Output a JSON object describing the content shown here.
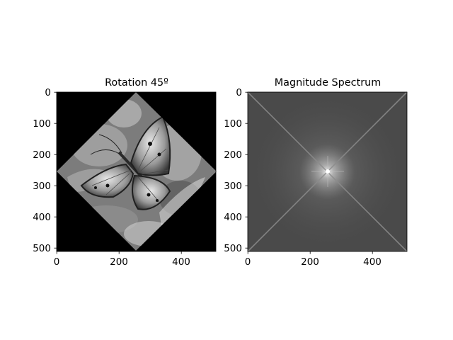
{
  "chart_data": [
    {
      "type": "image",
      "title": "Rotation 45º",
      "xlabel": "",
      "ylabel": "",
      "image_size": [
        512,
        512
      ],
      "xlim": [
        0,
        512
      ],
      "ylim": [
        512,
        0
      ],
      "xticks": [
        0,
        200,
        400
      ],
      "yticks": [
        0,
        100,
        200,
        300,
        400,
        500
      ],
      "colormap": "gray",
      "content": "grayscale photograph of a butterfly rotated 45 degrees, forming a diamond on a black background"
    },
    {
      "type": "image",
      "title": "Magnitude Spectrum",
      "xlabel": "",
      "ylabel": "",
      "image_size": [
        512,
        512
      ],
      "xlim": [
        0,
        512
      ],
      "ylim": [
        512,
        0
      ],
      "xticks": [
        0,
        200,
        400
      ],
      "yticks": [
        0,
        100,
        200,
        300,
        400,
        500
      ],
      "colormap": "gray",
      "content": "log magnitude FFT spectrum with bright center and diagonal cross lines"
    }
  ]
}
